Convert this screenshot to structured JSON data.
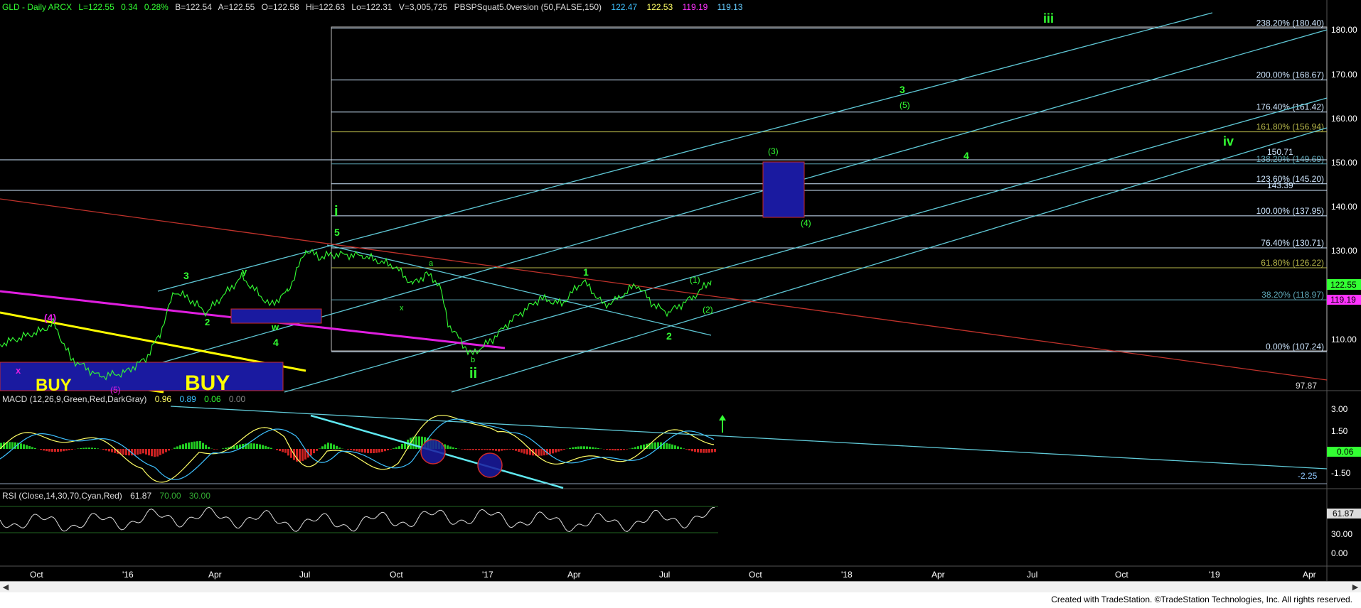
{
  "header": {
    "symbol": "GLD - Daily ARCX",
    "last": "L=122.55",
    "change": "0.34",
    "change_pct": "0.28%",
    "bid": "B=122.54",
    "ask": "A=122.55",
    "open": "O=122.58",
    "high": "Hi=122.63",
    "low": "Lo=122.31",
    "volume": "V=3,005,725",
    "indicator": "PBSPSquat5.0version (50,FALSE,150)",
    "ind_values": [
      "122.47",
      "122.53",
      "119.19",
      "119.13"
    ],
    "ind_colors": [
      "#3ec1ff",
      "#ffff66",
      "#ff33ff",
      "#66ccff"
    ]
  },
  "price_axis": {
    "ticks": [
      "180.00",
      "170.00",
      "160.00",
      "150.00",
      "140.00",
      "130.00",
      "110.00"
    ]
  },
  "fib_levels": [
    {
      "label": "238.20% (180.40)",
      "value": 180.4,
      "color": "#cfe7ff"
    },
    {
      "label": "200.00% (168.67)",
      "value": 168.67,
      "color": "#cfe7ff"
    },
    {
      "label": "176.40% (161.42)",
      "value": 161.42,
      "color": "#cfe7ff"
    },
    {
      "label": "161.80% (156.94)",
      "value": 156.94,
      "color": "#b8b84a"
    },
    {
      "label": "138.20% (149.69)",
      "value": 149.69,
      "color": "#5fa8b8"
    },
    {
      "label": "123.60% (145.20)",
      "value": 145.2,
      "color": "#cfe7ff"
    },
    {
      "label": "100.00% (137.95)",
      "value": 137.95,
      "color": "#cfe7ff"
    },
    {
      "label": "76.40% (130.71)",
      "value": 130.71,
      "color": "#cfe7ff"
    },
    {
      "label": "61.80% (126.22)",
      "value": 126.22,
      "color": "#b8b84a"
    },
    {
      "label": "38.20% (118.97)",
      "value": 118.97,
      "color": "#5fa8b8"
    },
    {
      "label": "0.00% (107.24)",
      "value": 107.24,
      "color": "#cfe7ff"
    }
  ],
  "extra_levels": [
    "150.71",
    "143.39",
    "97.87"
  ],
  "price_badges": {
    "last": "122.55",
    "ma": "119.19"
  },
  "wave_labels": {
    "green_big": [
      "iii",
      "iv",
      "ii",
      "i"
    ],
    "green": [
      "3",
      "4",
      "1",
      "2",
      "5",
      "3",
      "4",
      "2",
      "w",
      "y",
      "x",
      "a",
      "b",
      "c"
    ],
    "green_paren": [
      "(5)",
      "(3)",
      "(4)",
      "(1)",
      "(2)"
    ],
    "magenta": [
      "(4)",
      "x",
      "(5)"
    ]
  },
  "buy_labels": [
    "BUY",
    "BUY"
  ],
  "macd": {
    "title": "MACD (12,26,9,Green,Red,DarkGray)",
    "values": [
      "0.96",
      "0.89",
      "0.06",
      "0.00"
    ],
    "value_colors": [
      "#ffff66",
      "#3ec1ff",
      "#33ff33",
      "#888888"
    ],
    "ticks": [
      "3.00",
      "1.50",
      "-1.50"
    ],
    "badge": "0.06",
    "line_label": "-2.25"
  },
  "rsi": {
    "title": "RSI (Close,14,30,70,Cyan,Red)",
    "values": [
      "61.87",
      "70.00",
      "30.00"
    ],
    "value_colors": [
      "#dddddd",
      "#33aa33",
      "#33aa33"
    ],
    "ticks": [
      "30.00",
      "0.00"
    ],
    "badge": "61.87"
  },
  "time_axis": [
    "Oct",
    "'16",
    "Apr",
    "Jul",
    "Oct",
    "'17",
    "Apr",
    "Jul",
    "Oct",
    "'18",
    "Apr",
    "Jul",
    "Oct",
    "'19",
    "Apr"
  ],
  "footer": "Created with TradeStation. ©TradeStation Technologies, Inc. All rights reserved.",
  "chart_data": {
    "type": "line",
    "panels": [
      "price",
      "macd",
      "rsi"
    ],
    "price_series_approx": {
      "x": [
        "2015-10",
        "2016-01",
        "2016-04",
        "2016-07",
        "2016-10",
        "2016-12",
        "2017-04",
        "2017-07",
        "2017-08"
      ],
      "y": [
        112,
        106,
        118,
        130,
        122,
        108,
        123,
        117,
        122.55
      ]
    },
    "fib_targets": [
      180.4,
      168.67,
      161.42,
      156.94,
      149.69,
      145.2,
      137.95,
      130.71,
      126.22,
      118.97,
      107.24
    ]
  }
}
